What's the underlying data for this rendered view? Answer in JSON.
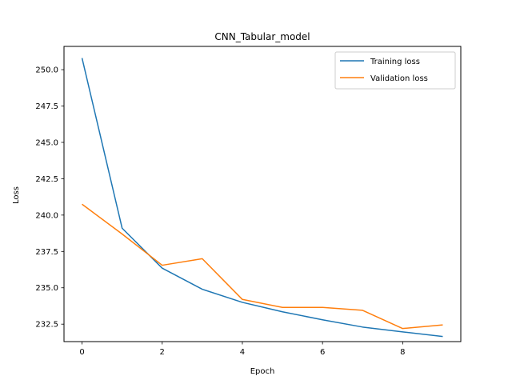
{
  "chart_data": {
    "type": "line",
    "title": "CNN_Tabular_model",
    "xlabel": "Epoch",
    "ylabel": "Loss",
    "x": [
      0,
      1,
      2,
      3,
      4,
      5,
      6,
      7,
      8,
      9
    ],
    "xlim": [
      -0.45,
      9.45
    ],
    "ylim": [
      231.3,
      251.6
    ],
    "xticks": [
      0,
      2,
      4,
      6,
      8
    ],
    "yticks": [
      232.5,
      235.0,
      237.5,
      240.0,
      242.5,
      245.0,
      247.5,
      250.0
    ],
    "ytick_labels": [
      "232.5",
      "235.0",
      "237.5",
      "240.0",
      "242.5",
      "245.0",
      "247.5",
      "250.0"
    ],
    "grid": false,
    "legend_position": "top-right",
    "series": [
      {
        "name": "Training loss",
        "color": "#1f77b4",
        "values": [
          250.8,
          239.1,
          236.35,
          234.9,
          234.0,
          233.35,
          232.8,
          232.3,
          231.97,
          231.65
        ]
      },
      {
        "name": "Validation loss",
        "color": "#ff7f0e",
        "values": [
          240.75,
          238.7,
          236.55,
          237.0,
          234.2,
          233.65,
          233.65,
          233.45,
          232.2,
          232.45
        ]
      }
    ]
  }
}
